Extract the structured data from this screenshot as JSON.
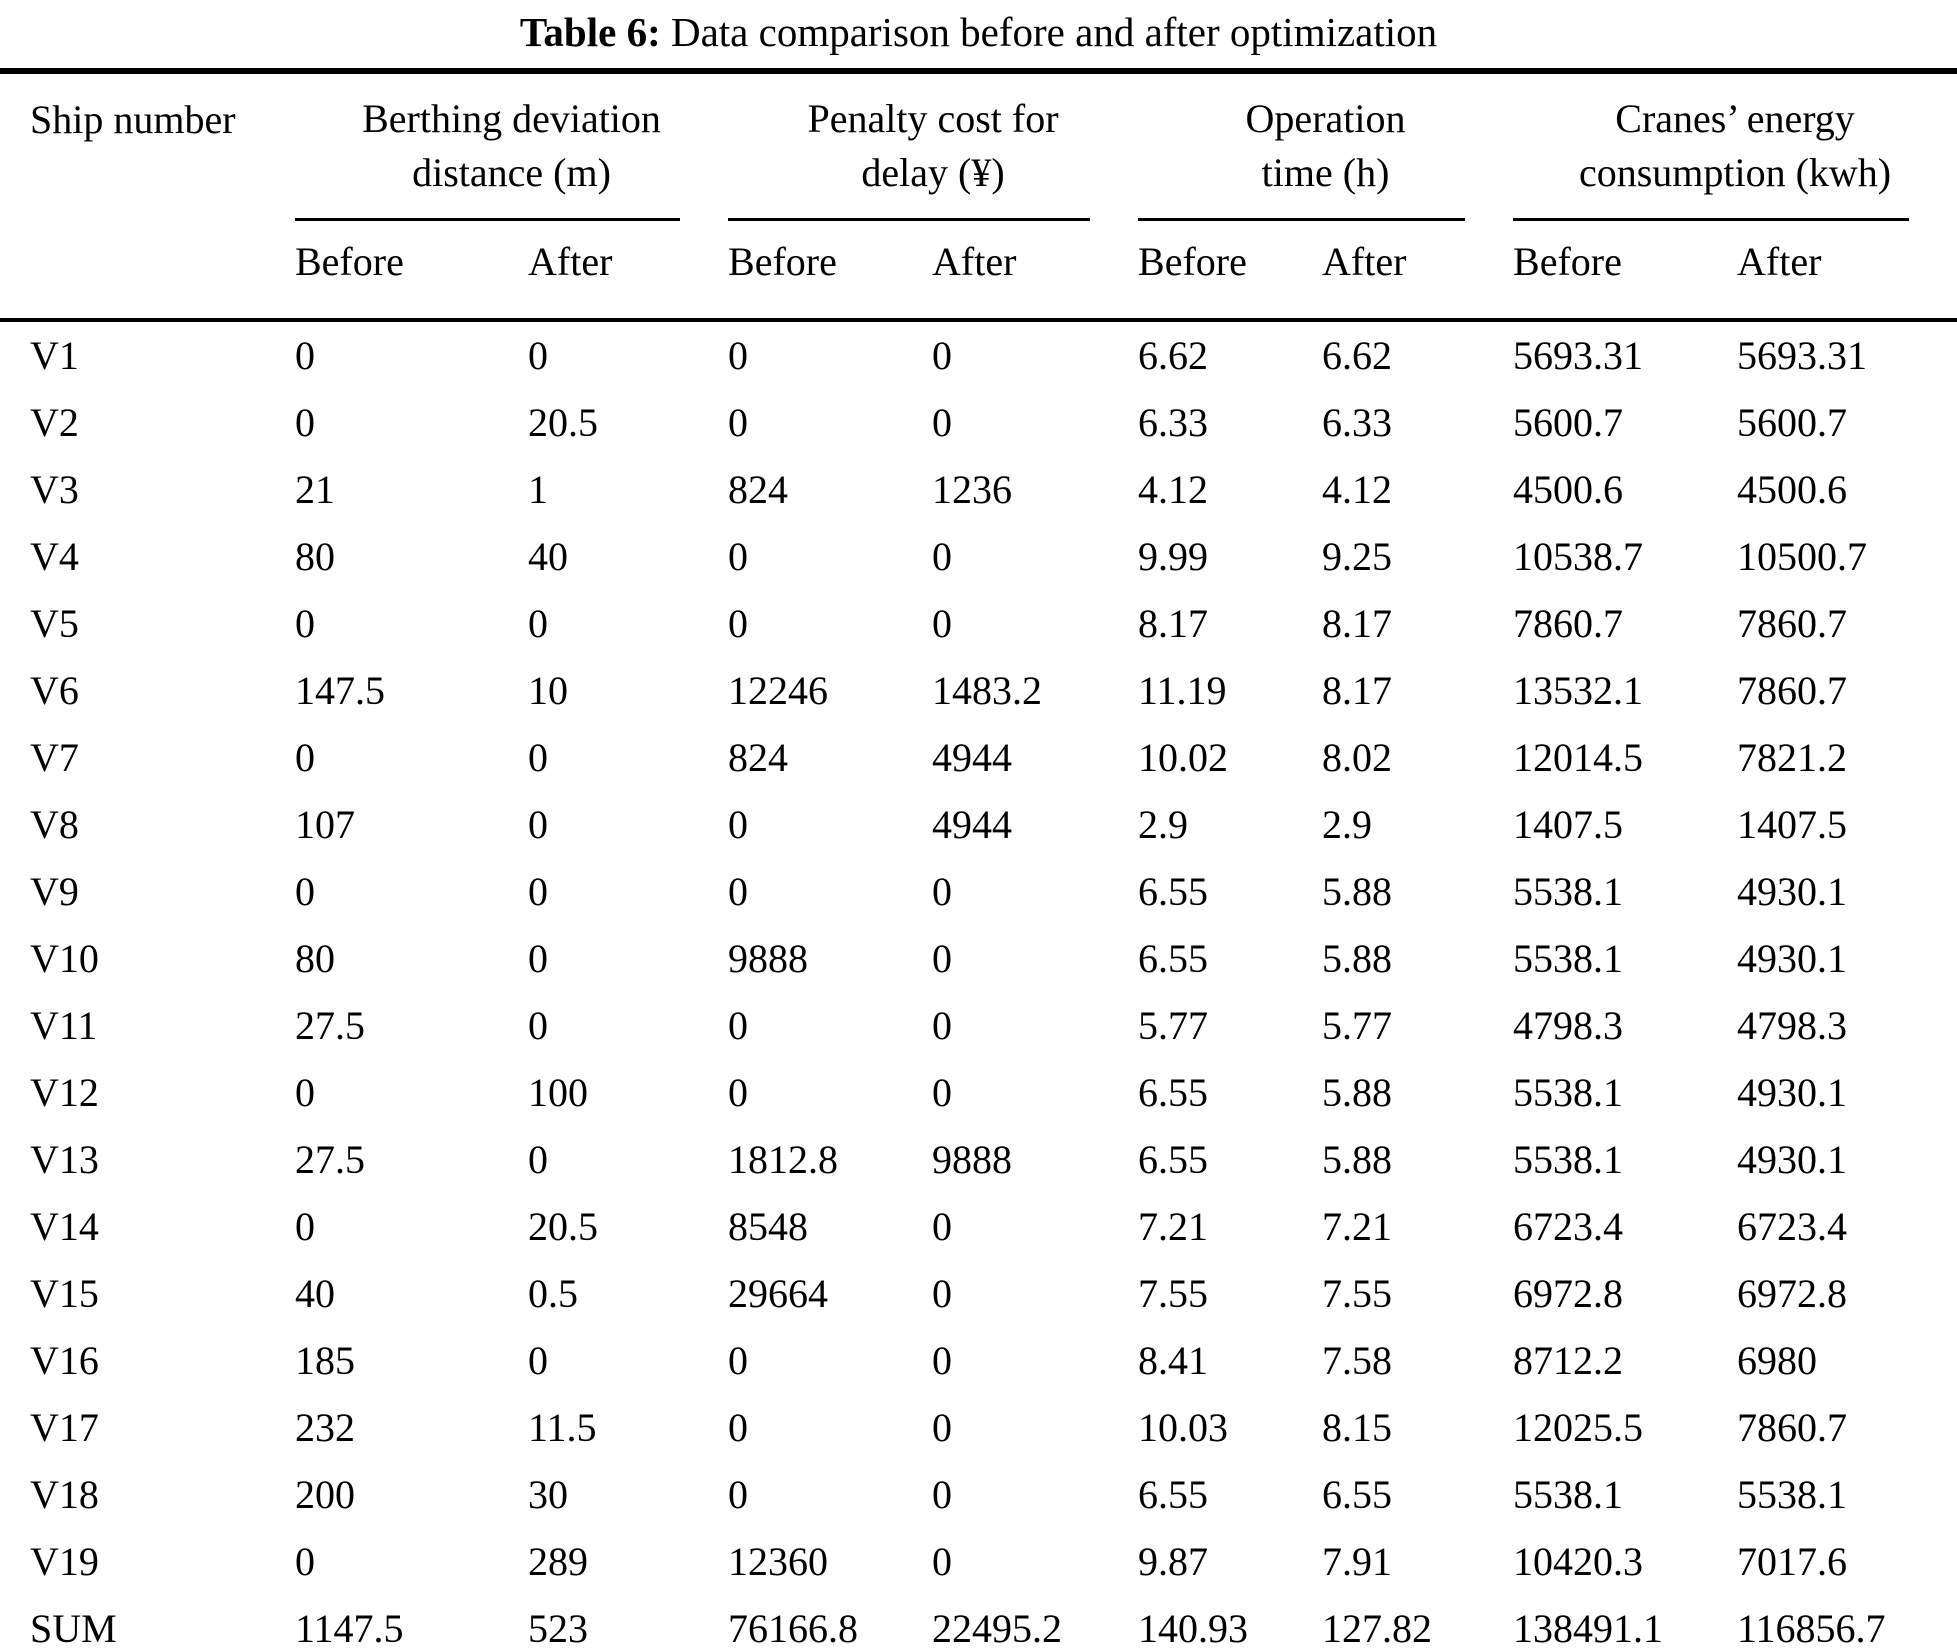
{
  "page": {
    "title_prefix": "Table 6:",
    "title_text": "Data comparison before and after optimization"
  },
  "table": {
    "ship_header": "Ship number",
    "groups": [
      {
        "line1": "Berthing deviation",
        "line2": "distance (m)"
      },
      {
        "line1": "Penalty cost for",
        "line2": "delay (¥)"
      },
      {
        "line1": "Operation",
        "line2": "time (h)"
      },
      {
        "line1": "Cranes’ energy",
        "line2": "consumption (kwh)"
      }
    ],
    "subheaders": {
      "before": "Before",
      "after": "After"
    },
    "rows": [
      {
        "ship": "V1",
        "values": [
          "0",
          "0",
          "0",
          "0",
          "6.62",
          "6.62",
          "5693.31",
          "5693.31"
        ]
      },
      {
        "ship": "V2",
        "values": [
          "0",
          "20.5",
          "0",
          "0",
          "6.33",
          "6.33",
          "5600.7",
          "5600.7"
        ]
      },
      {
        "ship": "V3",
        "values": [
          "21",
          "1",
          "824",
          "1236",
          "4.12",
          "4.12",
          "4500.6",
          "4500.6"
        ]
      },
      {
        "ship": "V4",
        "values": [
          "80",
          "40",
          "0",
          "0",
          "9.99",
          "9.25",
          "10538.7",
          "10500.7"
        ]
      },
      {
        "ship": "V5",
        "values": [
          "0",
          "0",
          "0",
          "0",
          "8.17",
          "8.17",
          "7860.7",
          "7860.7"
        ]
      },
      {
        "ship": "V6",
        "values": [
          "147.5",
          "10",
          "12246",
          "1483.2",
          "11.19",
          "8.17",
          "13532.1",
          "7860.7"
        ]
      },
      {
        "ship": "V7",
        "values": [
          "0",
          "0",
          "824",
          "4944",
          "10.02",
          "8.02",
          "12014.5",
          "7821.2"
        ]
      },
      {
        "ship": "V8",
        "values": [
          "107",
          "0",
          "0",
          "4944",
          "2.9",
          "2.9",
          "1407.5",
          "1407.5"
        ]
      },
      {
        "ship": "V9",
        "values": [
          "0",
          "0",
          "0",
          "0",
          "6.55",
          "5.88",
          "5538.1",
          "4930.1"
        ]
      },
      {
        "ship": "V10",
        "values": [
          "80",
          "0",
          "9888",
          "0",
          "6.55",
          "5.88",
          "5538.1",
          "4930.1"
        ]
      },
      {
        "ship": "V11",
        "values": [
          "27.5",
          "0",
          "0",
          "0",
          "5.77",
          "5.77",
          "4798.3",
          "4798.3"
        ]
      },
      {
        "ship": "V12",
        "values": [
          "0",
          "100",
          "0",
          "0",
          "6.55",
          "5.88",
          "5538.1",
          "4930.1"
        ]
      },
      {
        "ship": "V13",
        "values": [
          "27.5",
          "0",
          "1812.8",
          "9888",
          "6.55",
          "5.88",
          "5538.1",
          "4930.1"
        ]
      },
      {
        "ship": "V14",
        "values": [
          "0",
          "20.5",
          "8548",
          "0",
          "7.21",
          "7.21",
          "6723.4",
          "6723.4"
        ]
      },
      {
        "ship": "V15",
        "values": [
          "40",
          "0.5",
          "29664",
          "0",
          "7.55",
          "7.55",
          "6972.8",
          "6972.8"
        ]
      },
      {
        "ship": "V16",
        "values": [
          "185",
          "0",
          "0",
          "0",
          "8.41",
          "7.58",
          "8712.2",
          "6980"
        ]
      },
      {
        "ship": "V17",
        "values": [
          "232",
          "11.5",
          "0",
          "0",
          "10.03",
          "8.15",
          "12025.5",
          "7860.7"
        ]
      },
      {
        "ship": "V18",
        "values": [
          "200",
          "30",
          "0",
          "0",
          "6.55",
          "6.55",
          "5538.1",
          "5538.1"
        ]
      },
      {
        "ship": "V19",
        "values": [
          "0",
          "289",
          "12360",
          "0",
          "9.87",
          "7.91",
          "10420.3",
          "7017.6"
        ]
      },
      {
        "ship": "SUM",
        "values": [
          "1147.5",
          "523",
          "76166.8",
          "22495.2",
          "140.93",
          "127.82",
          "138491.1",
          "116856.7"
        ]
      }
    ]
  }
}
